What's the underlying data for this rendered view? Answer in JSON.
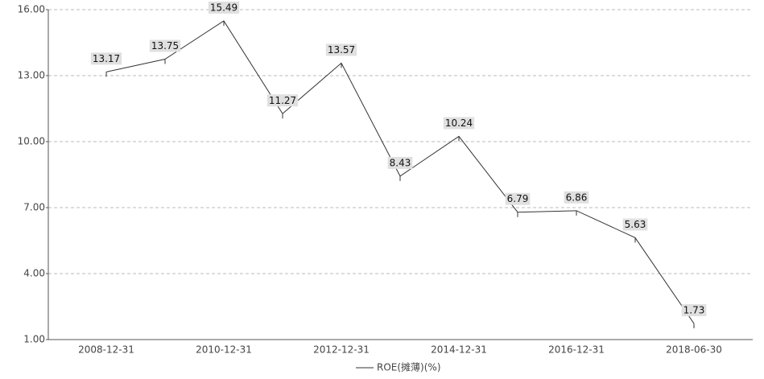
{
  "chart_data": {
    "type": "line",
    "categories": [
      "2008-12-31",
      null,
      "2010-12-31",
      null,
      "2012-12-31",
      null,
      "2014-12-31",
      null,
      "2016-12-31",
      null,
      "2018-06-30"
    ],
    "series": [
      {
        "name": "ROE(摊薄)(%)",
        "color": "#333333",
        "values": [
          13.17,
          13.75,
          15.49,
          11.27,
          13.57,
          8.43,
          10.24,
          6.79,
          6.86,
          5.63,
          1.73
        ]
      }
    ],
    "ylim": [
      1,
      16
    ],
    "yticks": [
      {
        "value": 1,
        "label": "1.00"
      },
      {
        "value": 4,
        "label": "4.00"
      },
      {
        "value": 7,
        "label": "7.00"
      },
      {
        "value": 10,
        "label": "10.00"
      },
      {
        "value": 13,
        "label": "13.00"
      },
      {
        "value": 16,
        "label": "16.00"
      }
    ],
    "grid": true,
    "legend": "bottom"
  }
}
